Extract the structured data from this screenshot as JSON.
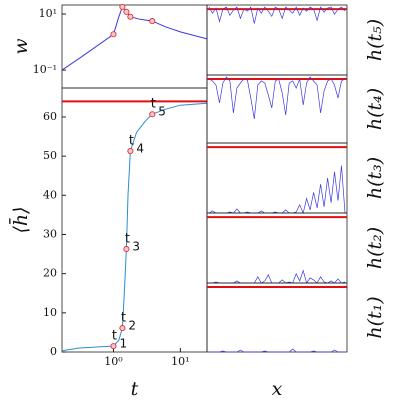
{
  "chart_data": [
    {
      "type": "line",
      "ylabel": "w",
      "xlog": true,
      "ylog": true,
      "xlim": [
        0.17,
        25
      ],
      "ylim": [
        0.023,
        21
      ],
      "yticks": [
        {
          "value": 0.1,
          "label": "10⁻¹"
        },
        {
          "value": 10,
          "label": "10¹"
        }
      ],
      "x": [
        0.17,
        0.3,
        0.6,
        1.0,
        1.2,
        1.36,
        1.56,
        1.79,
        2.5,
        3.8,
        6,
        10,
        25
      ],
      "series": [
        {
          "color": "#3a3ae0",
          "values": [
            0.1,
            0.25,
            0.8,
            1.9,
            8,
            18,
            12,
            8,
            6.5,
            5.6,
            3.5,
            2.3,
            1.3
          ]
        }
      ],
      "points": {
        "x": [
          1.0,
          1.36,
          1.56,
          1.79,
          3.8
        ],
        "values": [
          1.9,
          18,
          12,
          8,
          5.6
        ],
        "color": "#e0303a"
      }
    },
    {
      "type": "line",
      "ylabel": "⟨h̄⟩",
      "xlabel": "t",
      "xlog": true,
      "xlim": [
        0.17,
        25
      ],
      "ylim": [
        0,
        67.4
      ],
      "xticks": [
        {
          "value": 1,
          "label": "10⁰"
        },
        {
          "value": 10,
          "label": "10¹"
        }
      ],
      "yticks": [
        0,
        10,
        20,
        30,
        40,
        50,
        60
      ],
      "hline": 64,
      "hline_color": "#e01010",
      "x": [
        0.17,
        0.3,
        0.6,
        1.0,
        1.2,
        1.36,
        1.45,
        1.56,
        1.65,
        1.79,
        2.2,
        3,
        3.8,
        6,
        10,
        25
      ],
      "series": [
        {
          "color": "#2a8fd0",
          "values": [
            0.3,
            1,
            1.3,
            1.5,
            3,
            6.1,
            15,
            26.3,
            40,
            51.3,
            56,
            59,
            60.7,
            62,
            63,
            63.5
          ]
        }
      ],
      "points": {
        "x": [
          1.0,
          1.36,
          1.56,
          1.79,
          3.8
        ],
        "values": [
          1.5,
          6.1,
          26.3,
          51.3,
          60.7
        ],
        "color": "#e0303a",
        "marker_text": "t",
        "labels": [
          "1",
          "2",
          "3",
          "4",
          "5"
        ]
      }
    },
    {
      "type": "profile",
      "ylabel": "h(t₅)",
      "ylim": [
        0,
        68
      ],
      "hline": 64,
      "hline_color": "#e01010",
      "series": [
        {
          "color": "#3a3ae0",
          "values": [
            66,
            60,
            65,
            52,
            64,
            66,
            58,
            63,
            66,
            55,
            64,
            62,
            66,
            50,
            65,
            60,
            66,
            62,
            57,
            66,
            64,
            55,
            66,
            63,
            60,
            66,
            58,
            65,
            62,
            66,
            64,
            53,
            66,
            61,
            65,
            66,
            59,
            64,
            66,
            62
          ]
        }
      ]
    },
    {
      "type": "profile",
      "ylabel": "h(t₄)",
      "ylim": [
        0,
        68
      ],
      "hline": 64,
      "hline_color": "#e01010",
      "series": [
        {
          "color": "#3a3ae0",
          "values": [
            64,
            62,
            58,
            40,
            60,
            66,
            62,
            30,
            55,
            60,
            64,
            63,
            45,
            24,
            58,
            62,
            60,
            48,
            35,
            62,
            64,
            50,
            28,
            60,
            62,
            55,
            64,
            38,
            60,
            66,
            62,
            58,
            30,
            52,
            62,
            64,
            58,
            45,
            62,
            64
          ]
        }
      ]
    },
    {
      "type": "profile",
      "ylabel": "h(t₃)",
      "ylim": [
        0,
        68
      ],
      "hline": 64,
      "hline_color": "#e01010",
      "series": [
        {
          "color": "#3a3ae0",
          "values": [
            0,
            2,
            0,
            0,
            0,
            0,
            1,
            0,
            4,
            0,
            0,
            1,
            0,
            0,
            0,
            2,
            0,
            0,
            0,
            1,
            0,
            0,
            3,
            0,
            0,
            1,
            8,
            0,
            14,
            3,
            20,
            5,
            28,
            6,
            34,
            10,
            40,
            12,
            46,
            0
          ]
        }
      ]
    },
    {
      "type": "profile",
      "ylabel": "h(t₂)",
      "ylim": [
        0,
        68
      ],
      "hline": 64,
      "hline_color": "#e01010",
      "series": [
        {
          "color": "#3a3ae0",
          "values": [
            0,
            0,
            1,
            0,
            0,
            0,
            0,
            0,
            2,
            0,
            0,
            0,
            0,
            0,
            6,
            0,
            2,
            8,
            0,
            0,
            0,
            3,
            0,
            1,
            0,
            9,
            2,
            12,
            0,
            5,
            3,
            0,
            6,
            1,
            0,
            2,
            0,
            4,
            0,
            1
          ]
        }
      ]
    },
    {
      "type": "profile",
      "ylabel": "h(t₁)",
      "xlabel": "x",
      "ylim": [
        0,
        68
      ],
      "hline": 64,
      "hline_color": "#e01010",
      "series": [
        {
          "color": "#3a3ae0",
          "values": [
            0,
            0,
            0,
            0,
            1,
            0,
            0,
            0,
            0,
            2,
            0,
            0,
            0,
            0,
            0,
            0,
            1,
            0,
            0,
            0,
            0,
            0,
            0,
            0,
            3,
            0,
            0,
            0,
            0,
            0,
            1,
            0,
            0,
            0,
            0,
            0,
            2,
            0,
            0,
            0
          ]
        }
      ]
    }
  ]
}
